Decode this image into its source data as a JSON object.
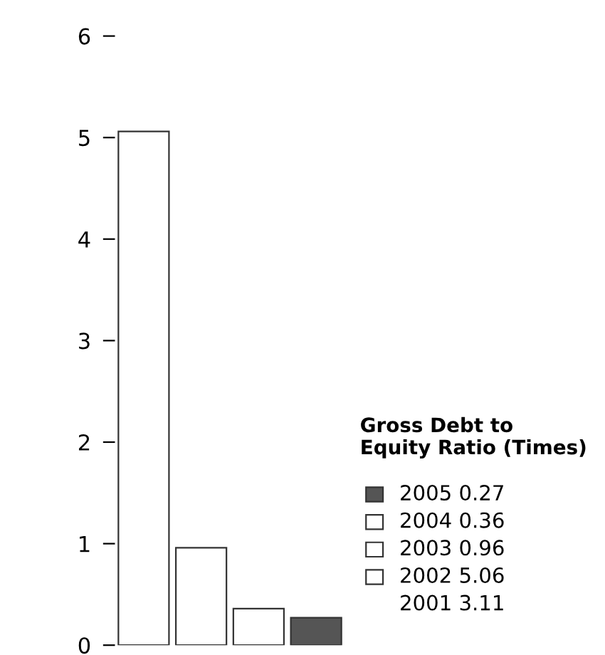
{
  "chart_data": {
    "type": "bar",
    "categories": [
      null,
      null,
      null,
      null
    ],
    "values": [
      5.06,
      0.96,
      0.36,
      0.27
    ],
    "colors": [
      "#ffffff",
      "#ffffff",
      "#ffffff",
      "#555555"
    ],
    "legend_title": "Gross Debt to\nEquity Ratio (Times)",
    "annotations": [
      "2005 0.27",
      "2004 0.36",
      "2003 0.96",
      "2002 5.06",
      "2001 3.11"
    ],
    "ylim": [
      0,
      6
    ],
    "yticks": [
      0,
      1,
      2,
      3,
      4,
      5,
      6
    ],
    "grid": false
  }
}
